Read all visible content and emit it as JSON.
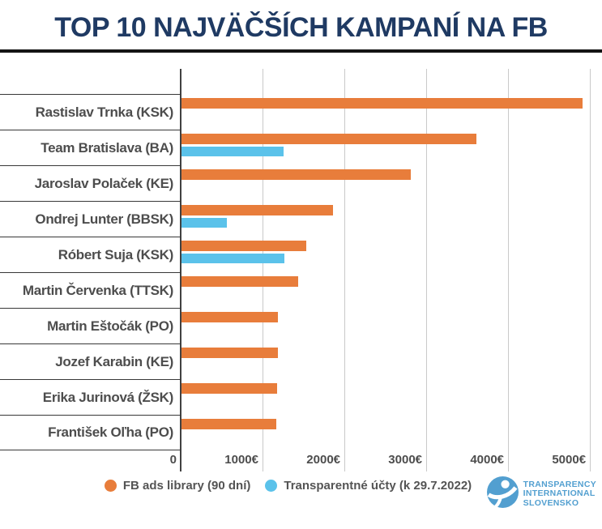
{
  "title": "TOP 10 NAJVÄČŠÍCH KAMPANÍ NA FB",
  "chart_data": {
    "type": "bar",
    "orientation": "horizontal",
    "title": "TOP 10 NAJVÄČŠÍCH KAMPANÍ NA FB",
    "categories": [
      "Rastislav Trnka (KSK)",
      "Team Bratislava (BA)",
      "Jaroslav Polaček (KE)",
      "Ondrej Lunter (BBSK)",
      "Róbert Suja (KSK)",
      "Martin Červenka (TTSK)",
      "Martin Eštočák (PO)",
      "Jozef Karabin (KE)",
      "Erika Jurinová (ŽSK)",
      "František Oľha (PO)"
    ],
    "series": [
      {
        "name": "FB ads library (90 dní)",
        "color": "#e87d3b",
        "values": [
          4900,
          3600,
          2800,
          1850,
          1520,
          1430,
          1180,
          1175,
          1165,
          1155
        ]
      },
      {
        "name": "Transparentné účty (k 29.7.2022)",
        "color": "#5bc2ea",
        "values": [
          null,
          1250,
          null,
          550,
          1260,
          null,
          null,
          null,
          null,
          null
        ]
      }
    ],
    "xlabel": "",
    "ylabel": "",
    "xlim": [
      0,
      5148
    ],
    "x_ticks": [
      {
        "value": 0,
        "label": "0"
      },
      {
        "value": 1000,
        "label": "1000€"
      },
      {
        "value": 2000,
        "label": "2000€"
      },
      {
        "value": 3000,
        "label": "3000€"
      },
      {
        "value": 4000,
        "label": "4000€"
      },
      {
        "value": 5000,
        "label": "5000€"
      }
    ],
    "grid": "vertical",
    "legend_position": "bottom"
  },
  "legend": {
    "items": [
      {
        "label": "FB ads library (90 dní)",
        "color": "#e87d3b"
      },
      {
        "label": "Transparentné účty (k 29.7.2022)",
        "color": "#5bc2ea"
      }
    ]
  },
  "footer_logo": {
    "lines": [
      "TRANSPARENCY",
      "INTERNATIONAL",
      "SLOVENSKO"
    ],
    "color": "#529fd0"
  },
  "colors": {
    "title": "#1f3a63",
    "bar_orange": "#e87d3b",
    "bar_blue": "#5bc2ea",
    "grid_line": "#c9c9c9",
    "axis_line": "#414141",
    "row_line": "#383838",
    "label_text": "#4d4d4d",
    "logo_blue": "#529fd0"
  }
}
